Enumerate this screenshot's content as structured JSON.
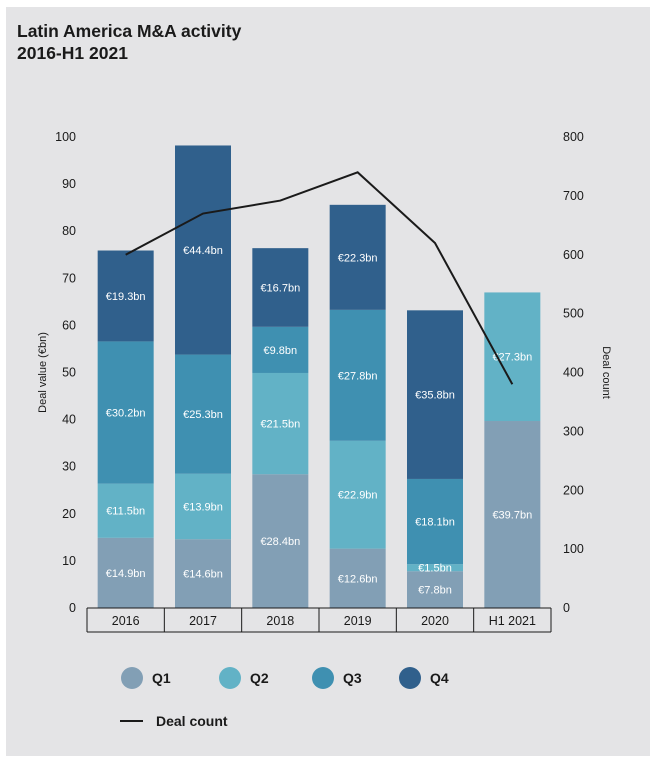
{
  "chart_data": {
    "type": "bar",
    "title": "Latin America M&A activity",
    "subtitle": "2016-H1 2021",
    "categories": [
      "2016",
      "2017",
      "2018",
      "2019",
      "2020",
      "H1 2021"
    ],
    "ylabel": "Deal value (€bn)",
    "y2label": "Deal count",
    "ylim": [
      0,
      100
    ],
    "y2lim": [
      0,
      800
    ],
    "yticks": [
      0,
      10,
      20,
      30,
      40,
      50,
      60,
      70,
      80,
      90,
      100
    ],
    "y2ticks": [
      0,
      100,
      200,
      300,
      400,
      500,
      600,
      700,
      800
    ],
    "stacked": true,
    "series": [
      {
        "name": "Q1",
        "color": "#829fb5",
        "values": [
          14.9,
          14.6,
          28.4,
          12.6,
          7.8,
          39.7
        ],
        "labels": [
          "€14.9bn",
          "€14.6bn",
          "€28.4bn",
          "€12.6bn",
          "€7.8bn",
          "€39.7bn"
        ]
      },
      {
        "name": "Q2",
        "color": "#62b2c6",
        "values": [
          11.5,
          13.9,
          21.5,
          22.9,
          1.5,
          27.3
        ],
        "labels": [
          "€11.5bn",
          "€13.9bn",
          "€21.5bn",
          "€22.9bn",
          "€1.5bn",
          "€27.3bn"
        ]
      },
      {
        "name": "Q3",
        "color": "#3f90b1",
        "values": [
          30.2,
          25.3,
          9.8,
          27.8,
          18.1,
          null
        ],
        "labels": [
          "€30.2bn",
          "€25.3bn",
          "€9.8bn",
          "€27.8bn",
          "€18.1bn",
          ""
        ]
      },
      {
        "name": "Q4",
        "color": "#30608c",
        "values": [
          19.3,
          44.4,
          16.7,
          22.3,
          35.8,
          null
        ],
        "labels": [
          "€19.3bn",
          "€44.4bn",
          "€16.7bn",
          "€22.3bn",
          "€35.8bn",
          ""
        ]
      }
    ],
    "line": {
      "name": "Deal count",
      "color": "#1a1a1a",
      "values": [
        600,
        670,
        692,
        740,
        620,
        380
      ]
    },
    "legend_position": "bottom",
    "grid": false
  }
}
